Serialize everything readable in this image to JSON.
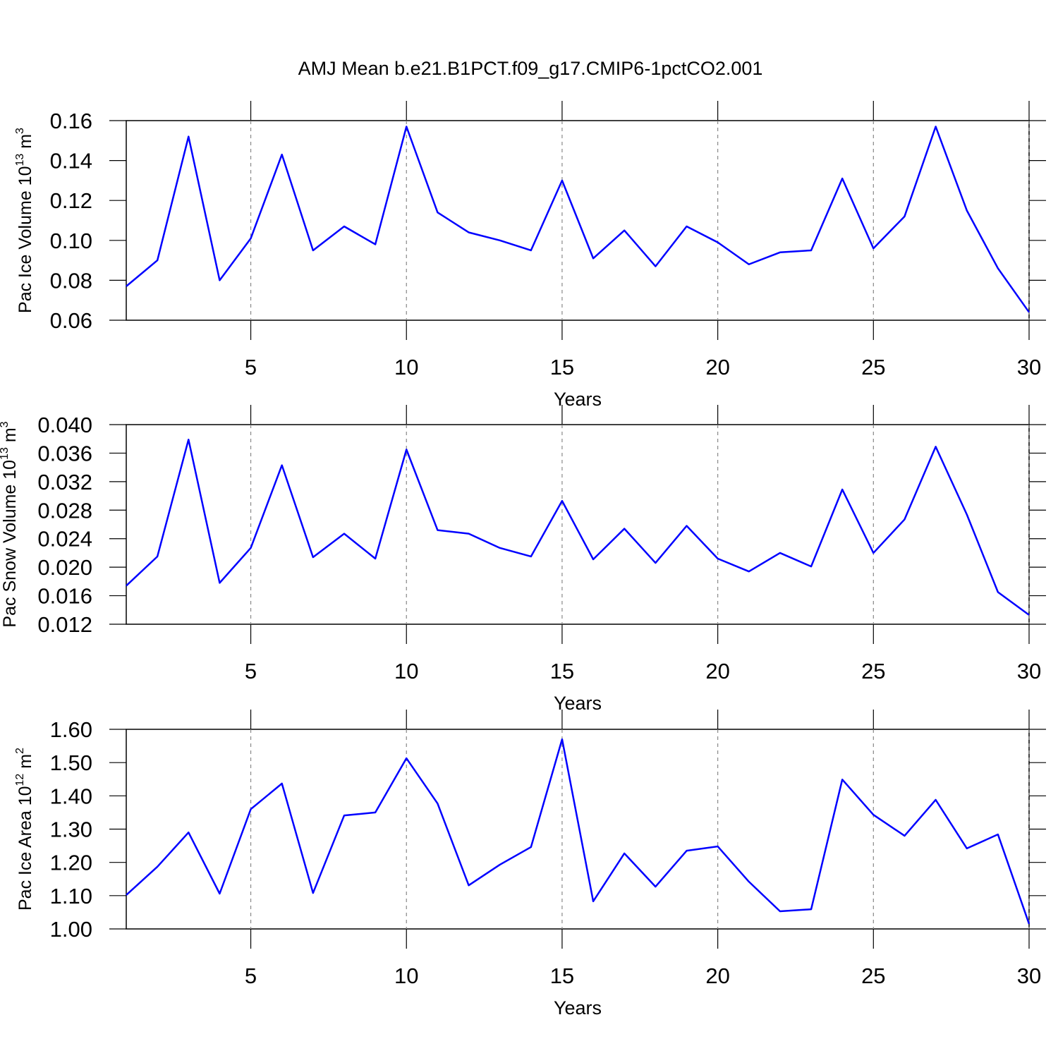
{
  "chart_data": [
    {
      "type": "line",
      "title": "AMJ Mean b.e21.B1PCT.f09_g17.CMIP6-1pctCO2.001",
      "xlabel": "Years",
      "ylabel": [
        "Pac Ice Volume 10",
        "13",
        " m",
        "3"
      ],
      "x": [
        1,
        2,
        3,
        4,
        5,
        6,
        7,
        8,
        9,
        10,
        11,
        12,
        13,
        14,
        15,
        16,
        17,
        18,
        19,
        20,
        21,
        22,
        23,
        24,
        25,
        26,
        27,
        28,
        29,
        30
      ],
      "values": [
        0.077,
        0.09,
        0.152,
        0.08,
        0.101,
        0.143,
        0.095,
        0.107,
        0.098,
        0.157,
        0.114,
        0.104,
        0.1,
        0.095,
        0.13,
        0.091,
        0.105,
        0.087,
        0.107,
        0.099,
        0.088,
        0.094,
        0.095,
        0.131,
        0.096,
        0.112,
        0.157,
        0.115,
        0.086,
        0.064
      ],
      "color": "#0000ff",
      "xlim": [
        1,
        30
      ],
      "xticks": [
        5,
        10,
        15,
        20,
        25,
        30
      ],
      "ylim": [
        0.06,
        0.16
      ],
      "yticks": [
        0.06,
        0.08,
        {
          "value": 0.1,
          "label": "0.10"
        },
        0.12,
        0.14,
        0.16
      ],
      "grid": true
    },
    {
      "type": "line",
      "xlabel": "Years",
      "ylabel": [
        "Pac Snow Volume 10",
        "13",
        " m",
        "3"
      ],
      "x": [
        1,
        2,
        3,
        4,
        5,
        6,
        7,
        8,
        9,
        10,
        11,
        12,
        13,
        14,
        15,
        16,
        17,
        18,
        19,
        20,
        21,
        22,
        23,
        24,
        25,
        26,
        27,
        28,
        29,
        30
      ],
      "values": [
        0.0174,
        0.0215,
        0.0379,
        0.0178,
        0.0227,
        0.0343,
        0.0214,
        0.0247,
        0.0212,
        0.0365,
        0.0252,
        0.0247,
        0.0227,
        0.0215,
        0.0293,
        0.0211,
        0.0254,
        0.0206,
        0.0258,
        0.0212,
        0.0194,
        0.022,
        0.0201,
        0.0309,
        0.022,
        0.0267,
        0.0369,
        0.0274,
        0.0165,
        0.0133
      ],
      "color": "#0000ff",
      "xlim": [
        1,
        30
      ],
      "xticks": [
        5,
        10,
        15,
        20,
        25,
        30
      ],
      "ylim": [
        0.012,
        0.04
      ],
      "yticks": [
        0.012,
        0.016,
        {
          "value": 0.02,
          "label": "0.020"
        },
        0.024,
        0.028,
        0.032,
        0.036,
        {
          "value": 0.04,
          "label": "0.040"
        }
      ],
      "grid": true
    },
    {
      "type": "line",
      "xlabel": "Years",
      "ylabel": [
        "Pac Ice Area 10",
        "12",
        " m",
        "2"
      ],
      "x": [
        1,
        2,
        3,
        4,
        5,
        6,
        7,
        8,
        9,
        10,
        11,
        12,
        13,
        14,
        15,
        16,
        17,
        18,
        19,
        20,
        21,
        22,
        23,
        24,
        25,
        26,
        27,
        28,
        29,
        30
      ],
      "values": [
        1.102,
        1.187,
        1.29,
        1.106,
        1.36,
        1.437,
        1.108,
        1.341,
        1.35,
        1.513,
        1.377,
        1.131,
        1.193,
        1.246,
        1.57,
        1.083,
        1.227,
        1.127,
        1.235,
        1.248,
        1.142,
        1.053,
        1.059,
        1.449,
        1.343,
        1.28,
        1.388,
        1.242,
        1.284,
        1.015
      ],
      "color": "#0000ff",
      "xlim": [
        1,
        30
      ],
      "xticks": [
        5,
        10,
        15,
        20,
        25,
        30
      ],
      "ylim": [
        1.0,
        1.6
      ],
      "yticks": [
        {
          "value": 1.0,
          "label": "1.00"
        },
        {
          "value": 1.1,
          "label": "1.10"
        },
        {
          "value": 1.2,
          "label": "1.20"
        },
        {
          "value": 1.3,
          "label": "1.30"
        },
        {
          "value": 1.4,
          "label": "1.40"
        },
        {
          "value": 1.5,
          "label": "1.50"
        },
        {
          "value": 1.6,
          "label": "1.60"
        }
      ],
      "grid": true
    }
  ]
}
